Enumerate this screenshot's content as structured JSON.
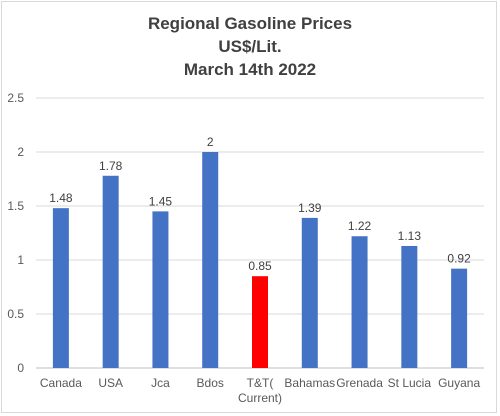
{
  "chart_data": {
    "type": "bar",
    "title": [
      "Regional Gasoline Prices",
      "US$/Lit.",
      "March 14th 2022"
    ],
    "categories": [
      [
        "Canada"
      ],
      [
        "USA"
      ],
      [
        "Jca"
      ],
      [
        "Bdos"
      ],
      [
        "T&T(",
        "Current)"
      ],
      [
        "Bahamas"
      ],
      [
        "Grenada"
      ],
      [
        "St Lucia"
      ],
      [
        "Guyana"
      ]
    ],
    "values": [
      1.48,
      1.78,
      1.45,
      2,
      0.85,
      1.39,
      1.22,
      1.13,
      0.92
    ],
    "data_labels": [
      "1.48",
      "1.78",
      "1.45",
      "2",
      "0.85",
      "1.39",
      "1.22",
      "1.13",
      "0.92"
    ],
    "bar_colors": [
      "#4472c4",
      "#4472c4",
      "#4472c4",
      "#4472c4",
      "#ff0000",
      "#4472c4",
      "#4472c4",
      "#4472c4",
      "#4472c4"
    ],
    "ylim": [
      0,
      2.5
    ],
    "yticks": [
      "0",
      "0.5",
      "1",
      "1.5",
      "2",
      "2.5"
    ],
    "grid": true,
    "legend": "none"
  }
}
